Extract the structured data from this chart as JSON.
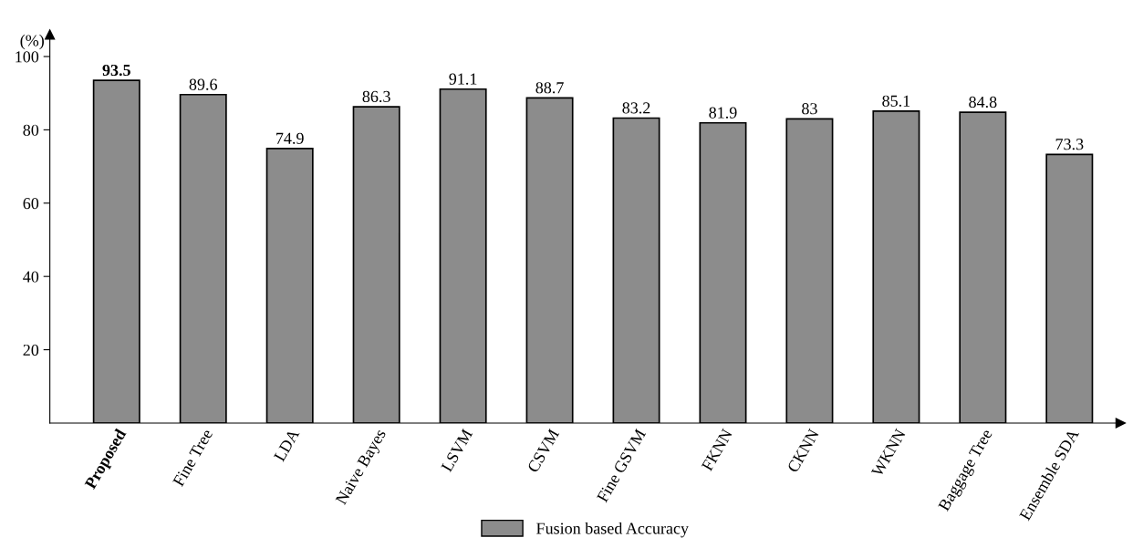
{
  "chart_data": {
    "type": "bar",
    "ylabel": "(%)",
    "categories": [
      "Proposed",
      "Fine Tree",
      "LDA",
      "Naive Bayes",
      "LSVM",
      "CSVM",
      "Fine GSVM",
      "FKNN",
      "CKNN",
      "WKNN",
      "Baggage Tree",
      "Ensemble SDA"
    ],
    "series": [
      {
        "name": "Fusion based Accuracy",
        "color": "#8c8c8c",
        "values": [
          93.5,
          89.6,
          74.9,
          86.3,
          91.1,
          88.7,
          83.2,
          81.9,
          83,
          85.1,
          84.8,
          73.3
        ]
      }
    ],
    "ylim": [
      0,
      106
    ],
    "yticks": [
      20,
      40,
      60,
      80,
      100
    ],
    "grid": false,
    "legend": "bottom",
    "data_labels": true
  }
}
